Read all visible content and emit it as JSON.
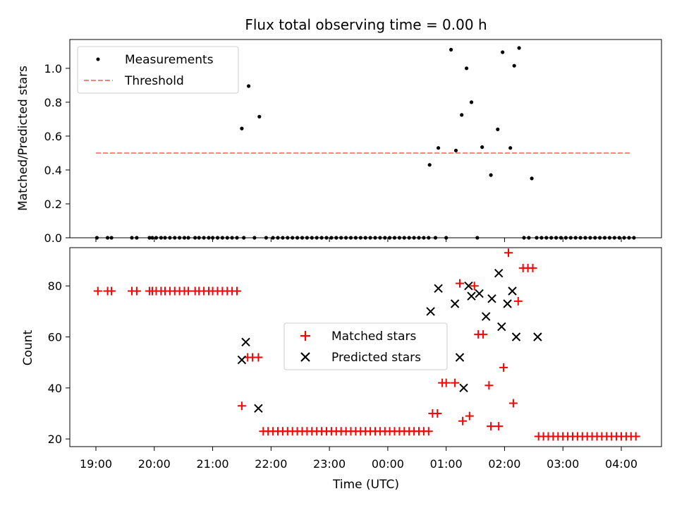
{
  "title": "Flux total observing time = 0.00 h",
  "chart_data": [
    {
      "type": "scatter",
      "panel": "top",
      "ylabel": "Matched/Predicted stars",
      "xlabel": "",
      "ylim": [
        0,
        1.17
      ],
      "yticks": [
        "0.0",
        "0.2",
        "0.4",
        "0.6",
        "0.8",
        "1.0"
      ],
      "legend": [
        "Measurements",
        "Threshold"
      ],
      "legend_position": "upper-left",
      "threshold": {
        "value": 0.5,
        "x_start": "19:00",
        "x_end": "04:10",
        "color": "#ff7f7f"
      },
      "series": [
        {
          "name": "Measurements",
          "marker": "dot",
          "x": [
            "19:01",
            "19:12",
            "19:16",
            "19:37",
            "19:42",
            "19:55",
            "19:58",
            "20:02",
            "20:07",
            "20:11",
            "20:16",
            "20:21",
            "20:26",
            "20:31",
            "20:35",
            "20:42",
            "20:46",
            "20:51",
            "20:56",
            "21:00",
            "21:05",
            "21:10",
            "21:15",
            "21:20",
            "21:25",
            "21:30",
            "21:32",
            "21:37",
            "21:43",
            "21:48",
            "21:55",
            "22:02",
            "22:07",
            "22:12",
            "22:17",
            "22:22",
            "22:27",
            "22:32",
            "22:37",
            "22:42",
            "22:47",
            "22:52",
            "22:57",
            "23:02",
            "23:07",
            "23:12",
            "23:17",
            "23:22",
            "23:27",
            "23:32",
            "23:37",
            "23:42",
            "23:47",
            "23:52",
            "23:57",
            "00:02",
            "00:07",
            "00:12",
            "00:17",
            "00:22",
            "00:27",
            "00:32",
            "00:37",
            "00:42",
            "00:43",
            "00:49",
            "00:52",
            "01:00",
            "01:05",
            "01:10",
            "01:16",
            "01:21",
            "01:26",
            "01:32",
            "01:37",
            "01:46",
            "01:53",
            "01:58",
            "02:06",
            "02:10",
            "02:15",
            "02:20",
            "02:25",
            "02:28",
            "02:33",
            "02:38",
            "02:43",
            "02:48",
            "02:53",
            "02:58",
            "03:03",
            "03:08",
            "03:13",
            "03:18",
            "03:23",
            "03:28",
            "03:33",
            "03:38",
            "03:43",
            "03:48",
            "03:53",
            "03:58",
            "04:03",
            "04:08",
            "04:13"
          ],
          "y": [
            0,
            0,
            0,
            0,
            0,
            0,
            0,
            0,
            0,
            0,
            0,
            0,
            0,
            0,
            0,
            0,
            0,
            0,
            0,
            0,
            0,
            0,
            0,
            0,
            0,
            0.645,
            0,
            0.895,
            0,
            0.715,
            0,
            0,
            0,
            0,
            0,
            0,
            0,
            0,
            0,
            0,
            0,
            0,
            0,
            0,
            0,
            0,
            0,
            0,
            0,
            0,
            0,
            0,
            0,
            0,
            0,
            0,
            0,
            0,
            0,
            0,
            0,
            0,
            0,
            0,
            0.43,
            0,
            0.53,
            0,
            1.11,
            0.515,
            0.725,
            1.0,
            0.8,
            0,
            0.535,
            0.37,
            0.64,
            1.095,
            0.53,
            1.015,
            1.12,
            0,
            0,
            0.35,
            0,
            0,
            0,
            0,
            0,
            0,
            0,
            0,
            0,
            0,
            0,
            0,
            0,
            0,
            0,
            0,
            0,
            0,
            0,
            0,
            0
          ]
        }
      ]
    },
    {
      "type": "scatter",
      "panel": "bottom",
      "xlabel": "Time (UTC)",
      "ylabel": "Count",
      "ylim": [
        17,
        95
      ],
      "yticks": [
        "20",
        "40",
        "60",
        "80"
      ],
      "xticks": [
        "19:00",
        "20:00",
        "21:00",
        "22:00",
        "23:00",
        "00:00",
        "01:00",
        "02:00",
        "03:00",
        "04:00"
      ],
      "legend": [
        "Matched stars",
        "Predicted stars"
      ],
      "legend_position": "center",
      "series": [
        {
          "name": "Matched stars",
          "marker": "plus",
          "color": "#ff0000",
          "x": [
            "19:02",
            "19:12",
            "19:16",
            "19:37",
            "19:42",
            "19:55",
            "19:58",
            "20:02",
            "20:07",
            "20:11",
            "20:16",
            "20:21",
            "20:26",
            "20:31",
            "20:35",
            "20:42",
            "20:46",
            "20:51",
            "20:56",
            "21:00",
            "21:05",
            "21:10",
            "21:15",
            "21:20",
            "21:25",
            "21:30",
            "21:36",
            "21:41",
            "21:47",
            "21:52",
            "21:57",
            "22:02",
            "22:07",
            "22:12",
            "22:17",
            "22:22",
            "22:27",
            "22:32",
            "22:37",
            "22:42",
            "22:47",
            "22:52",
            "22:57",
            "23:02",
            "23:07",
            "23:12",
            "23:17",
            "23:22",
            "23:27",
            "23:32",
            "23:37",
            "23:42",
            "23:47",
            "23:52",
            "23:57",
            "00:02",
            "00:07",
            "00:12",
            "00:17",
            "00:22",
            "00:27",
            "00:32",
            "00:37",
            "00:42",
            "00:46",
            "00:51",
            "00:56",
            "01:00",
            "01:09",
            "01:14",
            "01:17",
            "01:24",
            "01:29",
            "01:33",
            "01:38",
            "01:44",
            "01:46",
            "01:54",
            "01:59",
            "02:04",
            "02:09",
            "02:14",
            "02:19",
            "02:24",
            "02:29",
            "02:35",
            "02:40",
            "02:45",
            "02:50",
            "02:55",
            "03:00",
            "03:05",
            "03:10",
            "03:15",
            "03:20",
            "03:25",
            "03:30",
            "03:35",
            "03:40",
            "03:45",
            "03:50",
            "03:55",
            "04:00",
            "04:05",
            "04:10",
            "04:15"
          ],
          "y": [
            78,
            78,
            78,
            78,
            78,
            78,
            78,
            78,
            78,
            78,
            78,
            78,
            78,
            78,
            78,
            78,
            78,
            78,
            78,
            78,
            78,
            78,
            78,
            78,
            78,
            33,
            52,
            52,
            52,
            23,
            23,
            23,
            23,
            23,
            23,
            23,
            23,
            23,
            23,
            23,
            23,
            23,
            23,
            23,
            23,
            23,
            23,
            23,
            23,
            23,
            23,
            23,
            23,
            23,
            23,
            23,
            23,
            23,
            23,
            23,
            23,
            23,
            23,
            23,
            30,
            30,
            42,
            42,
            42,
            81,
            27,
            29,
            80,
            61,
            61,
            41,
            25,
            25,
            48,
            93,
            34,
            74,
            87,
            87,
            87,
            21,
            21,
            21,
            21,
            21,
            21,
            21,
            21,
            21,
            21,
            21,
            21,
            21,
            21,
            21,
            21,
            21,
            21,
            21,
            21,
            21
          ]
        },
        {
          "name": "Predicted stars",
          "marker": "x",
          "color": "#000000",
          "x": [
            "21:30",
            "21:34",
            "21:47",
            "00:44",
            "00:52",
            "01:09",
            "01:14",
            "01:18",
            "01:23",
            "01:26",
            "01:34",
            "01:41",
            "01:47",
            "01:54",
            "01:57",
            "02:03",
            "02:08",
            "02:12",
            "02:34"
          ],
          "y": [
            51,
            58,
            32,
            70,
            79,
            73,
            52,
            40,
            80,
            76,
            77,
            68,
            75,
            85,
            64,
            73,
            78,
            60,
            60
          ]
        }
      ]
    }
  ]
}
